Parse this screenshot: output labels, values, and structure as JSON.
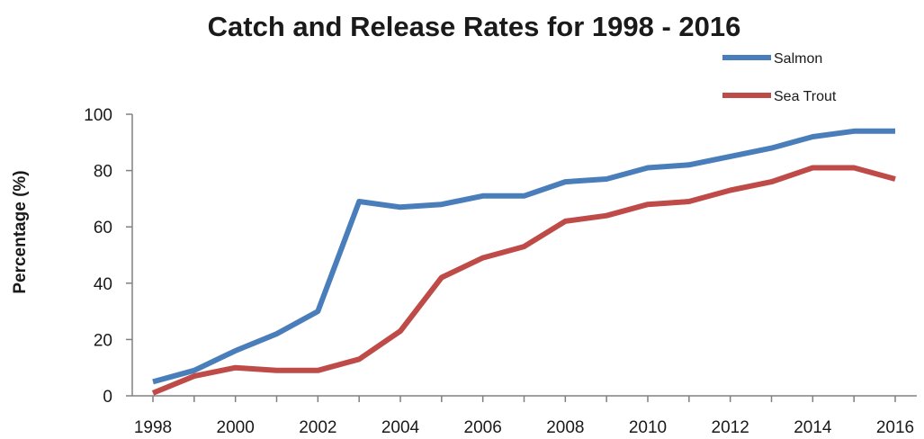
{
  "chart_data": {
    "type": "line",
    "title": "Catch and Release Rates for 1998 - 2016",
    "xlabel": "",
    "ylabel": "Percentage (%)",
    "x": [
      1998,
      1999,
      2000,
      2001,
      2002,
      2003,
      2004,
      2005,
      2006,
      2007,
      2008,
      2009,
      2010,
      2011,
      2012,
      2013,
      2014,
      2015,
      2016
    ],
    "xticks": [
      "1998",
      "2000",
      "2002",
      "2004",
      "2006",
      "2008",
      "2010",
      "2012",
      "2014",
      "2016"
    ],
    "yticks": [
      "0",
      "20",
      "40",
      "60",
      "80",
      "100"
    ],
    "xlim": [
      1998,
      2016
    ],
    "ylim": [
      0,
      100
    ],
    "grid": false,
    "legend_position": "top-right",
    "series": [
      {
        "name": "Salmon",
        "color": "#4a7ebb",
        "values": [
          5,
          9,
          16,
          22,
          30,
          69,
          67,
          68,
          71,
          71,
          76,
          77,
          81,
          82,
          85,
          88,
          92,
          94,
          94
        ]
      },
      {
        "name": "Sea Trout",
        "color": "#be4b48",
        "values": [
          1,
          7,
          10,
          9,
          9,
          13,
          23,
          42,
          49,
          53,
          62,
          64,
          68,
          69,
          73,
          76,
          81,
          81,
          77
        ]
      }
    ]
  }
}
